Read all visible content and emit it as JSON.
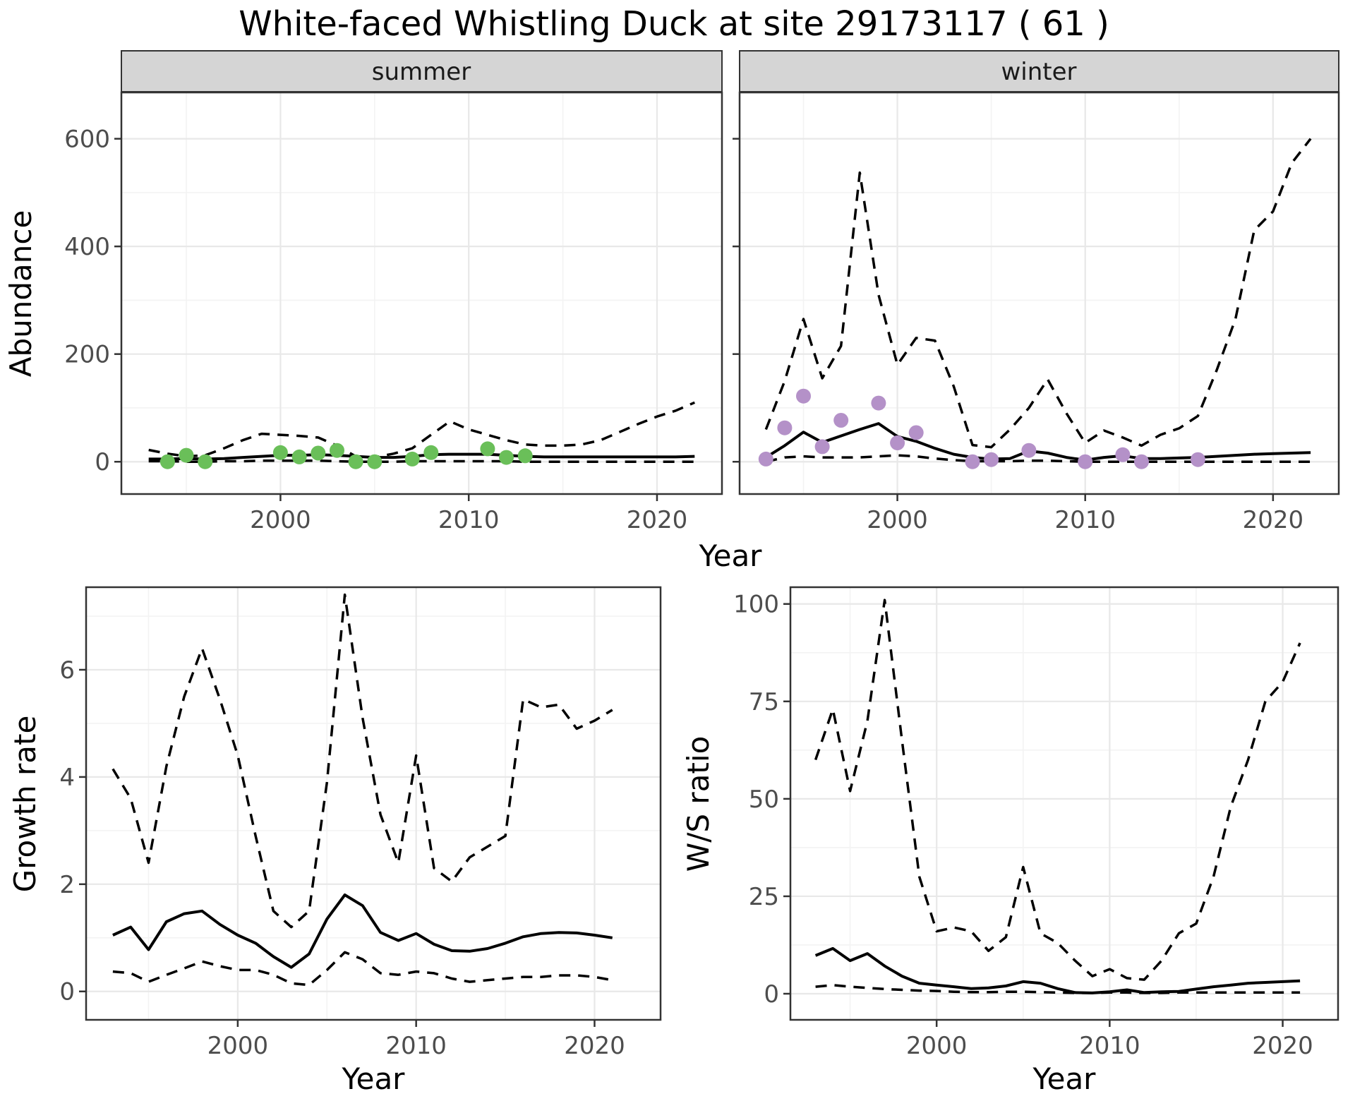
{
  "title": "White-faced Whistling Duck at site 29173117 ( 61 )",
  "colors": {
    "summer_points": "#6abf59",
    "winter_points": "#b491c8",
    "line": "#000000",
    "grid_major": "#e8e8e8",
    "grid_minor": "#f3f3f3",
    "strip_bg": "#d5d5d5",
    "panel_border": "#333333",
    "axis_text": "#4d4d4d"
  },
  "chart_data": [
    {
      "id": "summer",
      "type": "line",
      "facet": "summer",
      "xlabel": "Year",
      "ylabel": "Abundance",
      "x_ticks": [
        2000,
        2010,
        2020
      ],
      "y_ticks": [
        0,
        200,
        400,
        600
      ],
      "xlim": [
        1993,
        2022
      ],
      "ylim": [
        0,
        686
      ],
      "x": [
        1993,
        1994,
        1995,
        1996,
        1997,
        1998,
        1999,
        2000,
        2001,
        2002,
        2003,
        2004,
        2005,
        2006,
        2007,
        2008,
        2009,
        2010,
        2011,
        2012,
        2013,
        2014,
        2015,
        2016,
        2017,
        2018,
        2019,
        2020,
        2021,
        2022
      ],
      "series": [
        {
          "name": "median",
          "style": "solid",
          "values": [
            5,
            5,
            6,
            5,
            6,
            8,
            10,
            12,
            12,
            13,
            12,
            10,
            8,
            8,
            10,
            13,
            14,
            14,
            14,
            12,
            10,
            9,
            9,
            9,
            9,
            9,
            9,
            9,
            9,
            10
          ]
        },
        {
          "name": "upper_ci",
          "style": "dashed",
          "values": [
            22,
            15,
            10,
            12,
            25,
            40,
            52,
            50,
            48,
            45,
            30,
            10,
            8,
            15,
            25,
            50,
            75,
            60,
            50,
            40,
            32,
            30,
            30,
            32,
            40,
            55,
            70,
            84,
            95,
            110
          ]
        },
        {
          "name": "lower_ci",
          "style": "dashed",
          "values": [
            1,
            1,
            0,
            0,
            1,
            1,
            2,
            2,
            2,
            2,
            1,
            0,
            0,
            0,
            1,
            1,
            1,
            1,
            1,
            1,
            0,
            0,
            0,
            0,
            0,
            0,
            0,
            0,
            0,
            0
          ]
        },
        {
          "name": "observed",
          "style": "points",
          "color": "#6abf59",
          "x": [
            1994,
            1995,
            1996,
            2000,
            2001,
            2002,
            2003,
            2004,
            2005,
            2007,
            2008,
            2011,
            2012,
            2013
          ],
          "values": [
            0,
            12,
            0,
            17,
            9,
            16,
            21,
            0,
            0,
            5,
            17,
            24,
            8,
            11
          ]
        }
      ]
    },
    {
      "id": "winter",
      "type": "line",
      "facet": "winter",
      "xlabel": "Year",
      "ylabel": "Abundance",
      "x_ticks": [
        2000,
        2010,
        2020
      ],
      "y_ticks": [
        0,
        200,
        400,
        600
      ],
      "xlim": [
        1993,
        2022
      ],
      "ylim": [
        0,
        686
      ],
      "x": [
        1993,
        1994,
        1995,
        1996,
        1997,
        1998,
        1999,
        2000,
        2001,
        2002,
        2003,
        2004,
        2005,
        2006,
        2007,
        2008,
        2009,
        2010,
        2011,
        2012,
        2013,
        2014,
        2015,
        2016,
        2017,
        2018,
        2019,
        2020,
        2021,
        2022
      ],
      "series": [
        {
          "name": "median",
          "style": "solid",
          "values": [
            8,
            30,
            55,
            36,
            48,
            60,
            71,
            47,
            38,
            25,
            14,
            8,
            5,
            6,
            20,
            16,
            8,
            3,
            8,
            11,
            6,
            6,
            7,
            8,
            10,
            12,
            14,
            15,
            16,
            17
          ]
        },
        {
          "name": "upper_ci",
          "style": "dashed",
          "values": [
            60,
            150,
            265,
            155,
            215,
            537,
            310,
            180,
            230,
            225,
            140,
            31,
            27,
            60,
            100,
            153,
            90,
            35,
            58,
            45,
            30,
            50,
            62,
            85,
            170,
            265,
            430,
            465,
            555,
            600
          ]
        },
        {
          "name": "lower_ci",
          "style": "dashed",
          "values": [
            0,
            8,
            10,
            8,
            8,
            8,
            10,
            12,
            10,
            6,
            3,
            1,
            1,
            1,
            2,
            2,
            1,
            0,
            0,
            0,
            0,
            0,
            0,
            0,
            0,
            0,
            0,
            0,
            0,
            0
          ]
        },
        {
          "name": "observed",
          "style": "points",
          "color": "#b491c8",
          "x": [
            1993,
            1994,
            1995,
            1996,
            1997,
            1999,
            2000,
            2001,
            2004,
            2005,
            2007,
            2010,
            2012,
            2013,
            2016
          ],
          "values": [
            5,
            63,
            122,
            28,
            77,
            109,
            35,
            54,
            0,
            4,
            21,
            0,
            13,
            0,
            4
          ]
        }
      ]
    },
    {
      "id": "growth",
      "type": "line",
      "facet": "",
      "xlabel": "Year",
      "ylabel": "Growth rate",
      "x_ticks": [
        2000,
        2010,
        2020
      ],
      "y_ticks": [
        0,
        2,
        4,
        6
      ],
      "xlim": [
        1993,
        2021
      ],
      "ylim": [
        0,
        7.5
      ],
      "x": [
        1993,
        1994,
        1995,
        1996,
        1997,
        1998,
        1999,
        2000,
        2001,
        2002,
        2003,
        2004,
        2005,
        2006,
        2007,
        2008,
        2009,
        2010,
        2011,
        2012,
        2013,
        2014,
        2015,
        2016,
        2017,
        2018,
        2019,
        2020,
        2021
      ],
      "series": [
        {
          "name": "median",
          "style": "solid",
          "values": [
            1.05,
            1.2,
            0.78,
            1.3,
            1.45,
            1.5,
            1.25,
            1.05,
            0.9,
            0.65,
            0.45,
            0.7,
            1.35,
            1.8,
            1.6,
            1.1,
            0.95,
            1.08,
            0.88,
            0.76,
            0.75,
            0.8,
            0.9,
            1.02,
            1.08,
            1.1,
            1.09,
            1.05,
            1.0
          ]
        },
        {
          "name": "upper_ci",
          "style": "dashed",
          "values": [
            4.15,
            3.6,
            2.4,
            4.2,
            5.5,
            6.4,
            5.45,
            4.4,
            2.9,
            1.5,
            1.2,
            1.5,
            3.9,
            7.4,
            5.1,
            3.3,
            2.4,
            4.4,
            2.3,
            2.05,
            2.5,
            2.7,
            2.9,
            5.45,
            5.3,
            5.35,
            4.9,
            5.05,
            5.25
          ]
        },
        {
          "name": "lower_ci",
          "style": "dashed",
          "values": [
            0.37,
            0.34,
            0.18,
            0.31,
            0.43,
            0.56,
            0.47,
            0.4,
            0.4,
            0.31,
            0.15,
            0.12,
            0.4,
            0.73,
            0.6,
            0.34,
            0.31,
            0.37,
            0.34,
            0.24,
            0.18,
            0.21,
            0.24,
            0.27,
            0.27,
            0.3,
            0.3,
            0.27,
            0.21
          ]
        }
      ]
    },
    {
      "id": "ws",
      "type": "line",
      "facet": "",
      "xlabel": "Year",
      "ylabel": "W/S ratio",
      "x_ticks": [
        2000,
        2010,
        2020
      ],
      "y_ticks": [
        0,
        25,
        50,
        75,
        100
      ],
      "xlim": [
        1993,
        2021
      ],
      "ylim": [
        0,
        104
      ],
      "x": [
        1993,
        1994,
        1995,
        1996,
        1997,
        1998,
        1999,
        2000,
        2001,
        2002,
        2003,
        2004,
        2005,
        2006,
        2007,
        2008,
        2009,
        2010,
        2011,
        2012,
        2013,
        2014,
        2015,
        2016,
        2017,
        2018,
        2019,
        2020,
        2021
      ],
      "series": [
        {
          "name": "median",
          "style": "solid",
          "values": [
            9.8,
            11.6,
            8.5,
            10.3,
            7.1,
            4.5,
            2.7,
            2.2,
            1.8,
            1.3,
            1.5,
            2.0,
            3.1,
            2.7,
            1.3,
            0.3,
            0.2,
            0.5,
            1.0,
            0.3,
            0.5,
            0.6,
            1.2,
            1.8,
            2.2,
            2.7,
            2.9,
            3.1,
            3.3
          ]
        },
        {
          "name": "upper_ci",
          "style": "dashed",
          "values": [
            60,
            73,
            52,
            70,
            101,
            65,
            30,
            16,
            17,
            16,
            11,
            14.5,
            32.5,
            15.5,
            13,
            8.5,
            4.5,
            6.3,
            4,
            3.6,
            8.5,
            15.5,
            18,
            30,
            48,
            60,
            75,
            80,
            90
          ]
        },
        {
          "name": "lower_ci",
          "style": "dashed",
          "values": [
            1.8,
            2.2,
            1.8,
            1.5,
            1.2,
            1.0,
            0.8,
            0.7,
            0.5,
            0.4,
            0.4,
            0.5,
            0.5,
            0.4,
            0.3,
            0.2,
            0.2,
            0.3,
            0.3,
            0.2,
            0.2,
            0.3,
            0.3,
            0.3,
            0.3,
            0.3,
            0.3,
            0.3,
            0.3
          ]
        }
      ]
    }
  ]
}
